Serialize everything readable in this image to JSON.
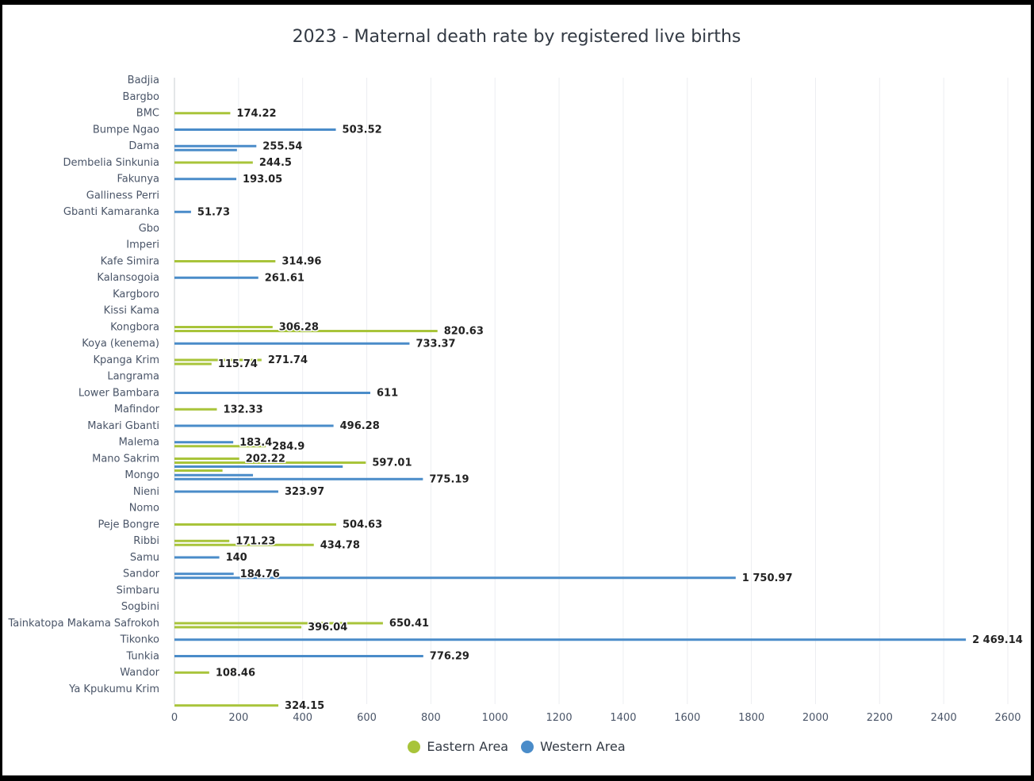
{
  "chart_data": {
    "type": "bar",
    "orientation": "horizontal",
    "title": "2023 - Maternal death rate by registered live births",
    "xlabel": "",
    "ylabel": "",
    "xlim": [
      0,
      2600
    ],
    "x_ticks": [
      "0",
      "200",
      "400",
      "600",
      "800",
      "1000",
      "1200",
      "1400",
      "1600",
      "1800",
      "2000",
      "2200",
      "2400",
      "2600"
    ],
    "grid": "vertical",
    "legend_position": "bottom-center",
    "categories": [
      "Badjia",
      "Bargbo",
      "BMC",
      "Bumpe Ngao",
      "Dama",
      "Dembelia Sinkunia",
      "Fakunya",
      "Galliness Perri",
      "Gbanti Kamaranka",
      "Gbo",
      "Imperi",
      "Kafe Simira",
      "Kalansogoia",
      "Kargboro",
      "Kissi Kama",
      "Kongbora",
      "Koya (kenema)",
      "Kpanga Krim",
      "Langrama",
      "Lower Bambara",
      "Mafindor",
      "Makari Gbanti",
      "Malema",
      "Mano Sakrim",
      "Mongo",
      "Nieni",
      "Nomo",
      "Peje Bongre",
      "Ribbi",
      "Samu",
      "Sandor",
      "Simbaru",
      "Sogbini",
      "Tainkatopa Makama Safrokoh",
      "Tikonko",
      "Tunkia",
      "Wandor",
      "Ya Kpukumu Krim"
    ],
    "series": [
      {
        "name": "Eastern Area",
        "color": "#a8c43a"
      },
      {
        "name": "Western Area",
        "color": "#4a8cc9"
      }
    ],
    "bars": [
      {
        "category": "Bargbo",
        "series": 0,
        "value": 174.22,
        "label": "174.22"
      },
      {
        "category": "BMC",
        "series": 1,
        "value": 503.52,
        "label": "503.52"
      },
      {
        "category": "Bumpe Ngao",
        "series": 1,
        "value": 255.54,
        "label": "255.54"
      },
      {
        "category": "Bumpe Ngao",
        "series": 1,
        "value": 195,
        "label": ""
      },
      {
        "category": "Dama",
        "series": 0,
        "value": 244.5,
        "label": "244.5"
      },
      {
        "category": "Dembelia Sinkunia",
        "series": 1,
        "value": 193.05,
        "label": "193.05"
      },
      {
        "category": "Galliness Perri",
        "series": 1,
        "value": 51.73,
        "label": "51.73"
      },
      {
        "category": "Imperi",
        "series": 0,
        "value": 314.96,
        "label": "314.96"
      },
      {
        "category": "Kafe Simira",
        "series": 1,
        "value": 261.61,
        "label": "261.61"
      },
      {
        "category": "Kissi Kama",
        "series": 0,
        "value": 306.28,
        "label": "306.28"
      },
      {
        "category": "Kissi Kama",
        "series": 0,
        "value": 820.63,
        "label": "820.63"
      },
      {
        "category": "Kongbora",
        "series": 1,
        "value": 733.37,
        "label": "733.37"
      },
      {
        "category": "Koya (kenema)",
        "series": 0,
        "value": 271.74,
        "label": "271.74"
      },
      {
        "category": "Koya (kenema)",
        "series": 0,
        "value": 115.74,
        "label": "115.74"
      },
      {
        "category": "Langrama",
        "series": 1,
        "value": 611,
        "label": "611"
      },
      {
        "category": "Lower Bambara",
        "series": 0,
        "value": 132.33,
        "label": "132.33"
      },
      {
        "category": "Mafindor",
        "series": 1,
        "value": 496.28,
        "label": "496.28"
      },
      {
        "category": "Makari Gbanti",
        "series": 1,
        "value": 183.4,
        "label": "183.4"
      },
      {
        "category": "Makari Gbanti",
        "series": 0,
        "value": 284.9,
        "label": "284.9"
      },
      {
        "category": "Malema",
        "series": 0,
        "value": 202.22,
        "label": "202.22"
      },
      {
        "category": "Malema",
        "series": 0,
        "value": 597.01,
        "label": "597.01"
      },
      {
        "category": "Malema",
        "series": 1,
        "value": 525,
        "label": ""
      },
      {
        "category": "Malema",
        "series": 0,
        "value": 150,
        "label": ""
      },
      {
        "category": "Mano Sakrim",
        "series": 1,
        "value": 245,
        "label": ""
      },
      {
        "category": "Mano Sakrim",
        "series": 1,
        "value": 775.19,
        "label": "775.19"
      },
      {
        "category": "Mongo",
        "series": 1,
        "value": 323.97,
        "label": "323.97"
      },
      {
        "category": "Nomo",
        "series": 0,
        "value": 504.63,
        "label": "504.63"
      },
      {
        "category": "Peje Bongre",
        "series": 0,
        "value": 171.23,
        "label": "171.23"
      },
      {
        "category": "Peje Bongre",
        "series": 0,
        "value": 434.78,
        "label": "434.78"
      },
      {
        "category": "Ribbi",
        "series": 1,
        "value": 140,
        "label": "140"
      },
      {
        "category": "Samu",
        "series": 1,
        "value": 184.76,
        "label": "184.76"
      },
      {
        "category": "Samu",
        "series": 1,
        "value": 1750.97,
        "label": "1 750.97"
      },
      {
        "category": "Sogbini",
        "series": 0,
        "value": 650.41,
        "label": "650.41"
      },
      {
        "category": "Sogbini",
        "series": 0,
        "value": 396.04,
        "label": "396.04"
      },
      {
        "category": "Tainkatopa Makama Safrokoh",
        "series": 1,
        "value": 2469.14,
        "label": "2 469.14"
      },
      {
        "category": "Tikonko",
        "series": 1,
        "value": 776.29,
        "label": "776.29"
      },
      {
        "category": "Tunkia",
        "series": 0,
        "value": 108.46,
        "label": "108.46"
      },
      {
        "category": "Ya Kpukumu Krim",
        "series": 0,
        "value": 324.15,
        "label": "324.15"
      }
    ]
  }
}
